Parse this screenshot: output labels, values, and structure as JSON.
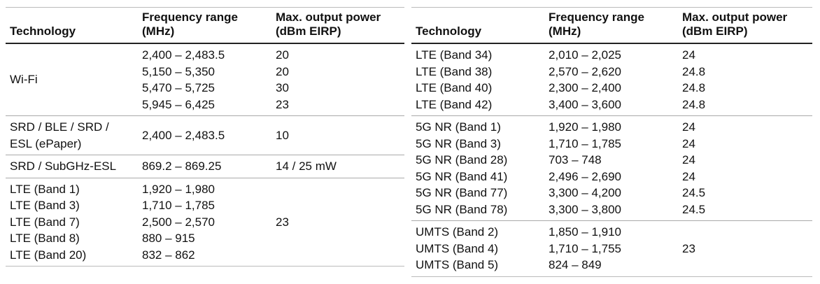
{
  "tables": [
    {
      "headers": [
        "Technology",
        "Frequency range (MHz)",
        "Max. output power (dBm EIRP)"
      ],
      "groups": [
        {
          "technology": [
            "Wi-Fi"
          ],
          "frequency": [
            "2,400 – 2,483.5",
            "5,150 – 5,350",
            "5,470 – 5,725",
            "5,945 – 6,425"
          ],
          "power": [
            "20",
            "20",
            "30",
            "23"
          ]
        },
        {
          "technology": [
            "SRD / BLE / SRD / ESL (ePaper)"
          ],
          "frequency": [
            "2,400 – 2,483.5"
          ],
          "power": [
            "10"
          ]
        },
        {
          "technology": [
            "SRD / SubGHz-ESL"
          ],
          "frequency": [
            "869.2 – 869.25"
          ],
          "power": [
            "14 / 25 mW"
          ]
        },
        {
          "technology": [
            "LTE (Band 1)",
            "LTE (Band 3)",
            "LTE (Band 7)",
            "LTE (Band 8)",
            "LTE (Band 20)"
          ],
          "frequency": [
            "1,920 – 1,980",
            "1,710 – 1,785",
            "2,500 – 2,570",
            "880 – 915",
            "832 – 862"
          ],
          "power": [
            "23"
          ]
        }
      ]
    },
    {
      "headers": [
        "Technology",
        "Frequency range (MHz)",
        "Max. output power (dBm EIRP)"
      ],
      "groups": [
        {
          "technology": [
            "LTE (Band 34)",
            "LTE (Band 38)",
            "LTE (Band 40)",
            "LTE (Band 42)"
          ],
          "frequency": [
            "2,010 – 2,025",
            "2,570 – 2,620",
            "2,300 – 2,400",
            "3,400 – 3,600"
          ],
          "power": [
            "24",
            "24.8",
            "24.8",
            "24.8"
          ]
        },
        {
          "technology": [
            "5G NR (Band 1)",
            "5G NR (Band 3)",
            "5G NR (Band 28)",
            "5G NR (Band 41)",
            "5G NR (Band 77)",
            "5G NR (Band 78)"
          ],
          "frequency": [
            "1,920 – 1,980",
            "1,710 – 1,785",
            "703 – 748",
            "2,496 – 2,690",
            "3,300 – 4,200",
            "3,300 – 3,800"
          ],
          "power": [
            "24",
            "24",
            "24",
            "24",
            "24.5",
            "24.5"
          ]
        },
        {
          "technology": [
            "UMTS (Band 2)",
            "UMTS (Band 4)",
            "UMTS (Band 5)"
          ],
          "frequency": [
            "1,850 – 1,910",
            "1,710 – 1,755",
            "824 – 849"
          ],
          "power": [
            "23"
          ]
        }
      ]
    }
  ]
}
